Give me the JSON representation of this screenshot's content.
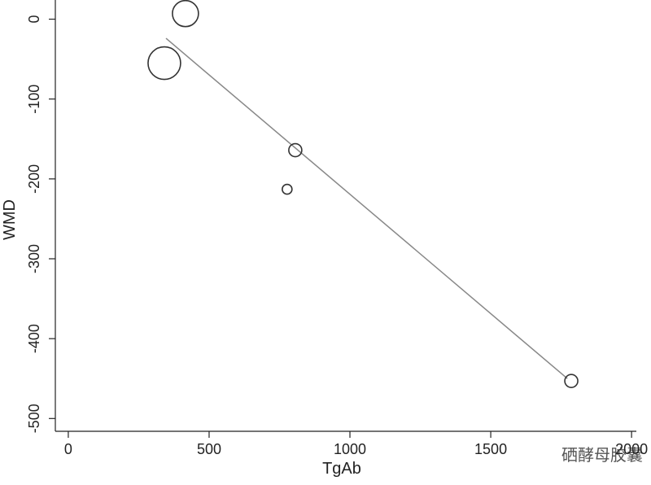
{
  "chart_data": {
    "type": "scatter",
    "x_label": "TgAb",
    "y_label": "WMD",
    "x": [
      416,
      341,
      806,
      777,
      1786
    ],
    "y": [
      7,
      -55,
      -164,
      -213,
      -453
    ],
    "sizes": [
      256,
      400,
      64,
      36,
      64
    ],
    "color": "#333333",
    "fit_line": {
      "x": [
        347,
        1772
      ],
      "y": [
        -24,
        -450
      ],
      "color": "#888888"
    },
    "xlim": [
      -46,
      2017
    ],
    "ylim": [
      -516,
      24
    ],
    "xticks": [
      0,
      500,
      1000,
      1500,
      2000
    ],
    "yticks": [
      0,
      -100,
      -200,
      -300,
      -400,
      -500
    ],
    "watermark": "硒酵母胶囊"
  }
}
